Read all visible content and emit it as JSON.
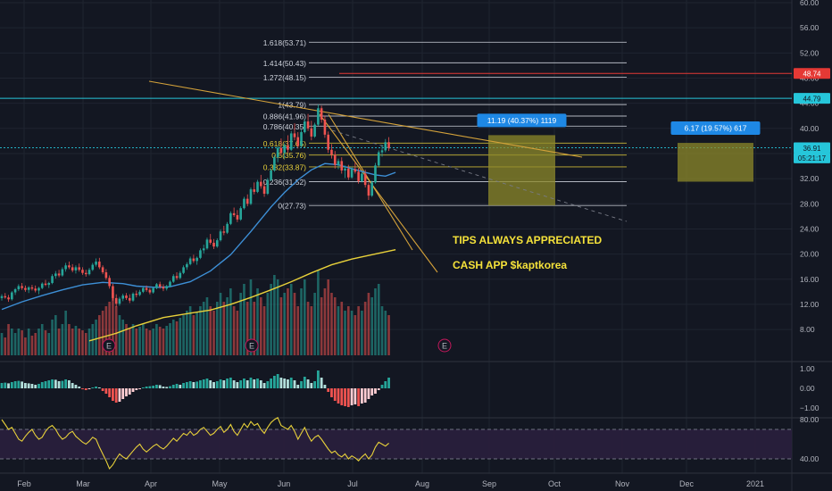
{
  "colors": {
    "background": "#131722",
    "grid": "#1f2430",
    "bull": "#26a69a",
    "bear": "#ef5350",
    "ma_fast": "#3d8fd6",
    "ma_slow": "#e8d13a",
    "trend": "#d4a23a",
    "fib_white": "#cfd3dc",
    "fib_yellow": "#e8d13a",
    "red_line": "#e53935",
    "cyan_line": "#26c6da",
    "box": "#8d8a2a",
    "label_blue": "#1e88e5",
    "annotation": "#f5e23a",
    "rsi": "#e8d13a",
    "rsi_band": "#2a1f3d"
  },
  "chart_data": {
    "type": "candlestick",
    "x_axis": {
      "labels": [
        "Feb",
        "Mar",
        "Apr",
        "May",
        "Jun",
        "Jul",
        "Aug",
        "Sep",
        "Oct",
        "Nov",
        "Dec",
        "2021"
      ]
    },
    "price_axis": {
      "ticks": [
        "60.00",
        "56.00",
        "52.00",
        "48.00",
        "44.00",
        "40.00",
        "36.00",
        "32.00",
        "28.00",
        "24.00",
        "20.00",
        "16.00",
        "12.00",
        "8.00"
      ],
      "range": [
        8,
        60
      ]
    },
    "price_badges": [
      {
        "text": "48.74",
        "value": 48.74,
        "color": "#e53935"
      },
      {
        "text": "44.79",
        "value": 44.79,
        "color": "#26c6da"
      },
      {
        "text": "36.91",
        "value": 36.91,
        "color": "#26c6da"
      },
      {
        "text": "05:21:17",
        "value": 35.3,
        "color": "#26c6da"
      }
    ],
    "fib_levels": [
      {
        "label": "1.618(53.71)",
        "value": 53.71,
        "color": "white"
      },
      {
        "label": "1.414(50.43)",
        "value": 50.43,
        "color": "white"
      },
      {
        "label": "1.272(48.15)",
        "value": 48.15,
        "color": "white"
      },
      {
        "label": "1(43.79)",
        "value": 43.79,
        "color": "white"
      },
      {
        "label": "0.886(41.96)",
        "value": 41.96,
        "color": "white"
      },
      {
        "label": "0.786(40.35)",
        "value": 40.35,
        "color": "white"
      },
      {
        "label": "0.618(37.65)",
        "value": 37.65,
        "color": "yellow"
      },
      {
        "label": "0.5(35.76)",
        "value": 35.76,
        "color": "yellow"
      },
      {
        "label": "0.382(33.87)",
        "value": 33.87,
        "color": "yellow"
      },
      {
        "label": "0.236(31.52)",
        "value": 31.52,
        "color": "white"
      },
      {
        "label": "0(27.73)",
        "value": 27.73,
        "color": "white"
      }
    ],
    "horizontal_lines": [
      {
        "name": "resistance-red",
        "value": 48.74,
        "color": "#e53935"
      },
      {
        "name": "resistance-cyan",
        "value": 44.79,
        "color": "#26c6da"
      },
      {
        "name": "last-price",
        "value": 36.91,
        "color": "#26c6da"
      }
    ],
    "measure_boxes": [
      {
        "label": "11.19 (40.37%) 1119",
        "from": 27.73,
        "to": 38.92
      },
      {
        "label": "6.17 (19.57%) 617",
        "from": 31.52,
        "to": 37.69
      }
    ],
    "annotations": [
      "TIPS ALWAYS APPRECIATED",
      "CASH APP $kaptkorea"
    ],
    "earnings_markers": [
      "E",
      "E",
      "E"
    ],
    "candles": [
      [
        13,
        13.6,
        12.6,
        13.3
      ],
      [
        13.3,
        13.8,
        12.9,
        13.1
      ],
      [
        13.1,
        13.5,
        12.4,
        12.8
      ],
      [
        12.8,
        14.1,
        12.6,
        13.9
      ],
      [
        13.9,
        14.6,
        13.5,
        14.4
      ],
      [
        14.4,
        15.2,
        14.1,
        14.9
      ],
      [
        14.9,
        15.4,
        14.3,
        14.6
      ],
      [
        14.6,
        15,
        14,
        14.3
      ],
      [
        14.3,
        14.9,
        13.8,
        14.7
      ],
      [
        14.7,
        15.1,
        14.2,
        14.5
      ],
      [
        14.5,
        15,
        13.9,
        14.2
      ],
      [
        14.2,
        14.8,
        13.6,
        14.6
      ],
      [
        14.6,
        15.5,
        14.4,
        15.3
      ],
      [
        15.3,
        15.9,
        14.9,
        15.1
      ],
      [
        15.1,
        15.6,
        14.6,
        15.4
      ],
      [
        15.4,
        16.8,
        15.2,
        16.5
      ],
      [
        16.5,
        17.3,
        16.1,
        16.9
      ],
      [
        16.9,
        17.5,
        16.3,
        16.6
      ],
      [
        16.6,
        17.9,
        16.4,
        17.6
      ],
      [
        17.6,
        18.6,
        17.2,
        18.2
      ],
      [
        18.2,
        18.8,
        17.6,
        17.9
      ],
      [
        17.9,
        18.4,
        17.1,
        17.4
      ],
      [
        17.4,
        18.2,
        16.9,
        17.9
      ],
      [
        17.9,
        18.5,
        17.2,
        17.5
      ],
      [
        17.5,
        17.9,
        16.7,
        17
      ],
      [
        17,
        17.5,
        16.4,
        16.8
      ],
      [
        16.8,
        17.8,
        16.6,
        17.5
      ],
      [
        17.5,
        18.6,
        17.3,
        18.3
      ],
      [
        18.3,
        19.3,
        18,
        18.8
      ],
      [
        18.8,
        19.4,
        17.6,
        17.9
      ],
      [
        17.9,
        18.2,
        16.8,
        17.1
      ],
      [
        17.1,
        17.6,
        15.9,
        16.2
      ],
      [
        16.2,
        16.6,
        14.5,
        14.9
      ],
      [
        14.9,
        15.3,
        12.6,
        13
      ],
      [
        13,
        13.6,
        11.6,
        12.1
      ],
      [
        12.1,
        13.2,
        11.8,
        12.9
      ],
      [
        12.9,
        13.7,
        12.5,
        13.4
      ],
      [
        13.4,
        13.8,
        12.7,
        13
      ],
      [
        13,
        13.6,
        12.2,
        12.6
      ],
      [
        12.6,
        13.9,
        12.4,
        13.7
      ],
      [
        13.7,
        14.2,
        13.1,
        13.5
      ],
      [
        13.5,
        14.3,
        13.3,
        14
      ],
      [
        14,
        14.8,
        13.8,
        14.6
      ],
      [
        14.6,
        15,
        14,
        14.3
      ],
      [
        14.3,
        14.6,
        13.6,
        13.9
      ],
      [
        13.9,
        14.8,
        13.7,
        14.6
      ],
      [
        14.6,
        15.4,
        14.4,
        15.2
      ],
      [
        15.2,
        15.6,
        14.5,
        14.8
      ],
      [
        14.8,
        15.2,
        14.1,
        14.5
      ],
      [
        14.5,
        15.1,
        14.2,
        14.9
      ],
      [
        14.9,
        15.8,
        14.7,
        15.6
      ],
      [
        15.6,
        16.8,
        15.4,
        16.5
      ],
      [
        16.5,
        17.1,
        15.9,
        16.2
      ],
      [
        16.2,
        17.3,
        16,
        17
      ],
      [
        17,
        18.2,
        16.8,
        17.9
      ],
      [
        17.9,
        18.7,
        17.5,
        18.4
      ],
      [
        18.4,
        19.6,
        18.2,
        19.3
      ],
      [
        19.3,
        19.9,
        18.6,
        18.9
      ],
      [
        18.9,
        19.6,
        18.3,
        19.4
      ],
      [
        19.4,
        20.9,
        19.2,
        20.6
      ],
      [
        20.6,
        21.5,
        20.1,
        20.9
      ],
      [
        20.9,
        22.6,
        20.7,
        22.3
      ],
      [
        22.3,
        23.2,
        21.5,
        21.8
      ],
      [
        21.8,
        22.4,
        20.8,
        21.2
      ],
      [
        21.2,
        22.5,
        21,
        22.2
      ],
      [
        22.2,
        23.9,
        22,
        23.6
      ],
      [
        23.6,
        24.5,
        23,
        23.4
      ],
      [
        23.4,
        25.1,
        23.2,
        24.8
      ],
      [
        24.8,
        26.8,
        24.6,
        26.5
      ],
      [
        26.5,
        27.4,
        25.9,
        26.2
      ],
      [
        26.2,
        27,
        25.1,
        25.5
      ],
      [
        25.5,
        27.6,
        25.3,
        27.3
      ],
      [
        27.3,
        29.1,
        27.1,
        28.8
      ],
      [
        28.8,
        29.5,
        27.6,
        28
      ],
      [
        28,
        30.6,
        27.8,
        30.3
      ],
      [
        30.3,
        31.4,
        29.5,
        29.9
      ],
      [
        29.9,
        31.8,
        29.7,
        31.5
      ],
      [
        31.5,
        32.6,
        30.4,
        30.8
      ],
      [
        30.8,
        31.5,
        29.1,
        29.6
      ],
      [
        29.6,
        32.1,
        29.4,
        31.8
      ],
      [
        31.8,
        33.6,
        31.6,
        33.3
      ],
      [
        33.3,
        35.7,
        33.1,
        35.4
      ],
      [
        35.4,
        37.2,
        34.6,
        36.9
      ],
      [
        36.9,
        38.4,
        35.7,
        36.1
      ],
      [
        36.1,
        37.6,
        35.2,
        37.3
      ],
      [
        37.3,
        38.9,
        36.1,
        36.6
      ],
      [
        36.6,
        39.6,
        36.4,
        39.2
      ],
      [
        39.2,
        40.8,
        38.1,
        38.6
      ],
      [
        38.6,
        39.4,
        36.8,
        37.2
      ],
      [
        37.2,
        39.8,
        37,
        39.4
      ],
      [
        39.4,
        41.5,
        39.2,
        41.1
      ],
      [
        41.1,
        42.3,
        39.6,
        40
      ],
      [
        40,
        41.2,
        38.1,
        38.7
      ],
      [
        38.7,
        40.9,
        38.5,
        40.6
      ],
      [
        40.6,
        43.8,
        40.4,
        43.2
      ],
      [
        43.2,
        43.6,
        40.9,
        41.4
      ],
      [
        41.4,
        42,
        38.5,
        39
      ],
      [
        39,
        39.5,
        36.1,
        36.6
      ],
      [
        36.6,
        37.5,
        35.2,
        35.8
      ],
      [
        35.8,
        36.4,
        33.6,
        34.2
      ],
      [
        34.2,
        35.2,
        33.5,
        34.8
      ],
      [
        34.8,
        35.4,
        32.8,
        33.3
      ],
      [
        33.3,
        34.1,
        32.1,
        33.6
      ],
      [
        33.6,
        34.2,
        31.8,
        32.2
      ],
      [
        32.2,
        33.9,
        32,
        33.5
      ],
      [
        33.5,
        34.6,
        32.8,
        33.1
      ],
      [
        33.1,
        33.7,
        31.2,
        31.6
      ],
      [
        31.6,
        33.1,
        31.4,
        32.8
      ],
      [
        32.8,
        33.4,
        30.6,
        31
      ],
      [
        31,
        31.4,
        28.6,
        29.3
      ],
      [
        29.3,
        31.7,
        29.1,
        31.4
      ],
      [
        31.4,
        34.5,
        31.2,
        34.1
      ],
      [
        34.1,
        36.5,
        33.9,
        36.2
      ],
      [
        36.2,
        37.4,
        35.5,
        36.5
      ],
      [
        36.5,
        38.3,
        36.2,
        37.8
      ],
      [
        37.8,
        38.6,
        36.4,
        36.91
      ]
    ],
    "ma_fast_values": [
      [
        0,
        11.2
      ],
      [
        6,
        12.4
      ],
      [
        12,
        13.4
      ],
      [
        18,
        14.3
      ],
      [
        24,
        15.1
      ],
      [
        30,
        15.5
      ],
      [
        36,
        15.3
      ],
      [
        40,
        14.9
      ],
      [
        46,
        14.7
      ],
      [
        50,
        14.8
      ],
      [
        56,
        15.6
      ],
      [
        62,
        17.3
      ],
      [
        68,
        19.9
      ],
      [
        74,
        23.6
      ],
      [
        80,
        27.5
      ],
      [
        84,
        29.8
      ],
      [
        88,
        31.8
      ],
      [
        92,
        33.4
      ],
      [
        96,
        34.4
      ],
      [
        100,
        34.2
      ],
      [
        104,
        33.6
      ],
      [
        108,
        33
      ],
      [
        111,
        32.6
      ],
      [
        114,
        32.4
      ],
      [
        117,
        33
      ]
    ],
    "ma_slow_values": [
      [
        26,
        6.2
      ],
      [
        34,
        7.4
      ],
      [
        40,
        8.6
      ],
      [
        48,
        9.9
      ],
      [
        56,
        10.6
      ],
      [
        62,
        11.1
      ],
      [
        68,
        12
      ],
      [
        74,
        13.1
      ],
      [
        80,
        14.3
      ],
      [
        86,
        15.6
      ],
      [
        92,
        17
      ],
      [
        98,
        18.3
      ],
      [
        104,
        19.2
      ],
      [
        110,
        19.9
      ],
      [
        117,
        20.7
      ]
    ],
    "volume": [
      0.25,
      0.2,
      0.35,
      0.3,
      0.25,
      0.3,
      0.28,
      0.2,
      0.3,
      0.22,
      0.25,
      0.3,
      0.35,
      0.28,
      0.25,
      0.4,
      0.45,
      0.3,
      0.35,
      0.5,
      0.35,
      0.3,
      0.33,
      0.3,
      0.28,
      0.25,
      0.3,
      0.35,
      0.4,
      0.45,
      0.5,
      0.55,
      0.6,
      0.7,
      0.55,
      0.45,
      0.4,
      0.35,
      0.3,
      0.35,
      0.3,
      0.32,
      0.35,
      0.3,
      0.28,
      0.3,
      0.35,
      0.32,
      0.3,
      0.33,
      0.36,
      0.4,
      0.38,
      0.42,
      0.45,
      0.5,
      0.55,
      0.45,
      0.48,
      0.55,
      0.6,
      0.65,
      0.55,
      0.5,
      0.6,
      0.7,
      0.6,
      0.65,
      0.75,
      0.55,
      0.5,
      0.7,
      0.8,
      0.6,
      0.85,
      0.6,
      0.75,
      0.65,
      0.55,
      0.7,
      0.8,
      0.9,
      0.85,
      0.65,
      0.7,
      0.75,
      0.8,
      0.7,
      0.55,
      0.75,
      0.85,
      0.6,
      0.55,
      0.7,
      0.95,
      0.65,
      0.75,
      0.85,
      0.7,
      0.65,
      0.55,
      0.6,
      0.5,
      0.55,
      0.5,
      0.45,
      0.55,
      0.5,
      0.6,
      0.7,
      0.65,
      0.75,
      0.8,
      0.55,
      0.5,
      0.45
    ],
    "macd_hist": [
      0.3,
      0.32,
      0.28,
      0.35,
      0.4,
      0.42,
      0.38,
      0.3,
      0.28,
      0.25,
      0.2,
      0.25,
      0.35,
      0.4,
      0.45,
      0.5,
      0.48,
      0.4,
      0.42,
      0.5,
      0.45,
      0.3,
      0.2,
      0.1,
      -0.05,
      -0.1,
      -0.05,
      0.05,
      0.1,
      0.05,
      -0.15,
      -0.3,
      -0.5,
      -0.7,
      -0.8,
      -0.75,
      -0.6,
      -0.45,
      -0.35,
      -0.2,
      -0.1,
      -0.05,
      0.05,
      0.1,
      0.12,
      0.15,
      0.2,
      0.18,
      0.1,
      0.08,
      0.12,
      0.2,
      0.25,
      0.2,
      0.3,
      0.35,
      0.4,
      0.35,
      0.38,
      0.45,
      0.5,
      0.55,
      0.45,
      0.35,
      0.4,
      0.5,
      0.45,
      0.55,
      0.6,
      0.45,
      0.35,
      0.45,
      0.55,
      0.45,
      0.6,
      0.5,
      0.55,
      0.45,
      0.3,
      0.4,
      0.55,
      0.7,
      0.8,
      0.6,
      0.55,
      0.5,
      0.6,
      0.45,
      0.2,
      0.4,
      0.65,
      0.5,
      0.3,
      0.4,
      1.0,
      0.6,
      0.2,
      -0.2,
      -0.5,
      -0.7,
      -0.85,
      -0.95,
      -1.0,
      -1.05,
      -0.95,
      -0.9,
      -1.0,
      -0.85,
      -0.8,
      -0.6,
      -0.4,
      -0.3,
      -0.1,
      0.2,
      0.4,
      0.6
    ],
    "macd_axis": {
      "ticks": [
        "1.00",
        "0.00",
        "−1.00"
      ]
    },
    "rsi_values": [
      80,
      75,
      70,
      72,
      66,
      60,
      58,
      63,
      67,
      70,
      64,
      60,
      62,
      68,
      72,
      74,
      70,
      64,
      60,
      62,
      66,
      68,
      63,
      60,
      57,
      55,
      58,
      62,
      60,
      52,
      45,
      38,
      30,
      34,
      40,
      45,
      42,
      40,
      44,
      48,
      52,
      55,
      50,
      47,
      50,
      53,
      55,
      52,
      50,
      53,
      57,
      61,
      58,
      62,
      66,
      64,
      68,
      64,
      66,
      70,
      72,
      68,
      64,
      66,
      70,
      73,
      67,
      70,
      75,
      68,
      64,
      70,
      76,
      72,
      78,
      74,
      76,
      70,
      66,
      72,
      77,
      80,
      82,
      74,
      72,
      70,
      74,
      68,
      60,
      66,
      72,
      64,
      58,
      62,
      64,
      60,
      55,
      50,
      46,
      48,
      44,
      42,
      45,
      40,
      43,
      41,
      38,
      42,
      45,
      40,
      44,
      52,
      57,
      55,
      53,
      56
    ],
    "rsi_axis": {
      "ticks": [
        "80.00",
        "40.00"
      ],
      "band": [
        40,
        70
      ]
    }
  }
}
